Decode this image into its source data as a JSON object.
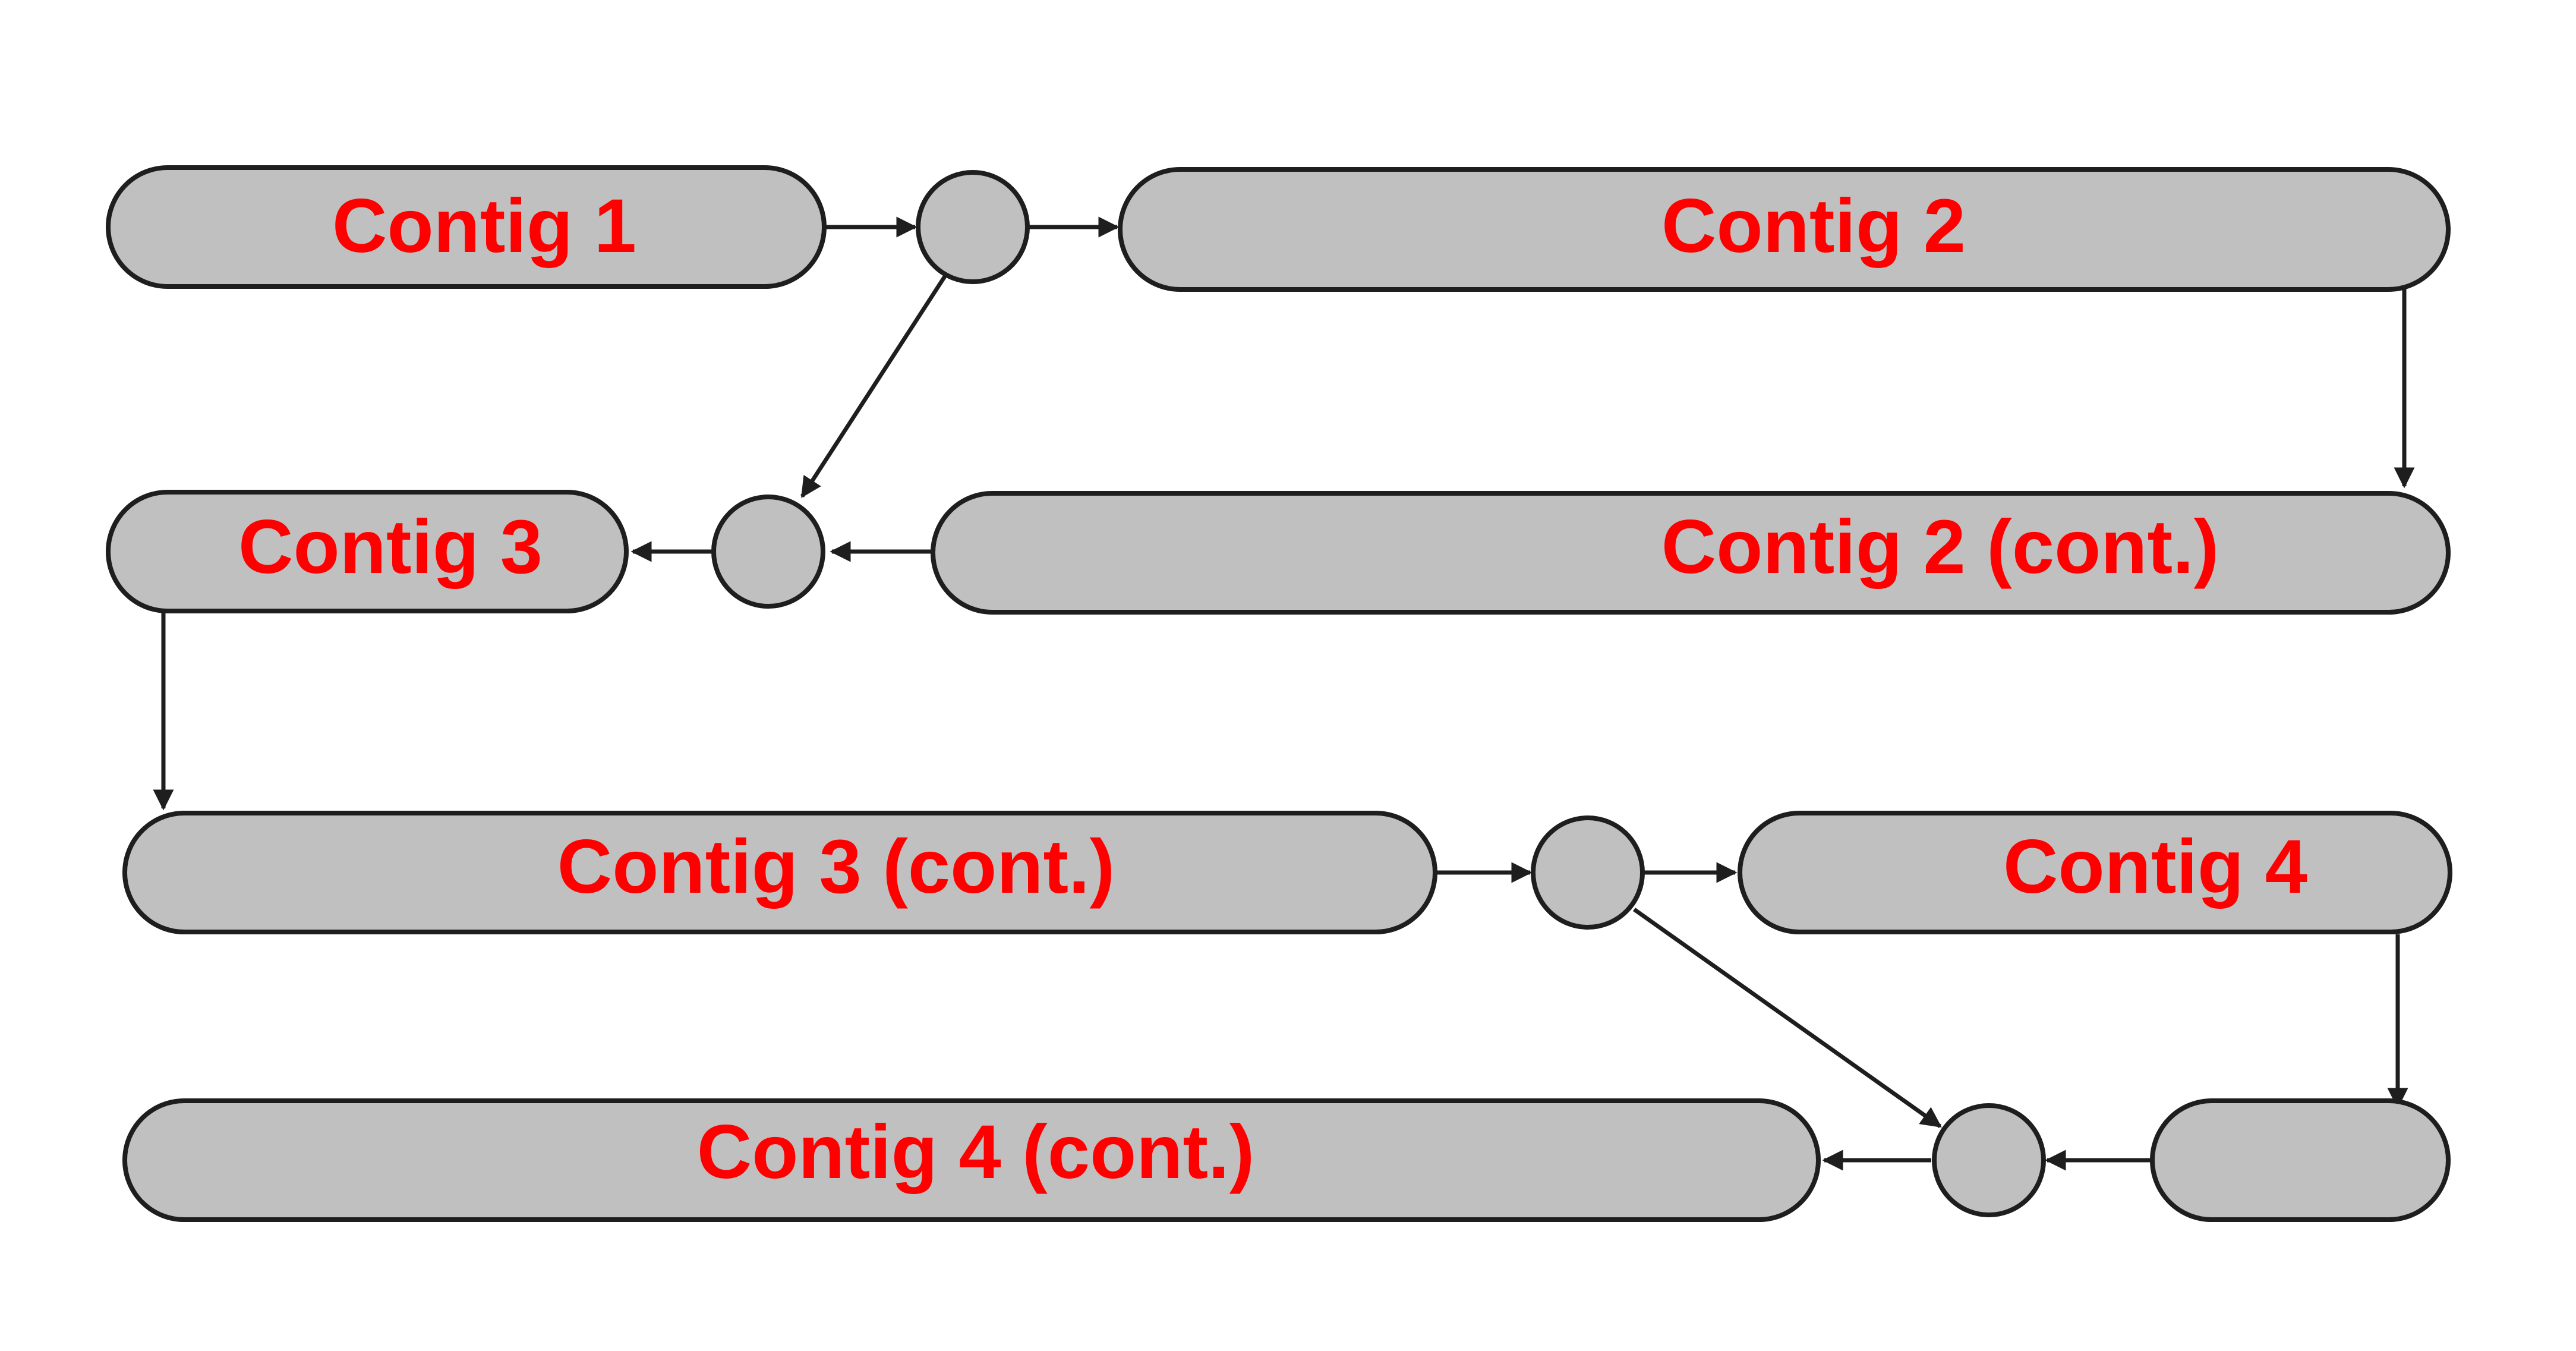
{
  "colors": {
    "fill": "#c0c0c0",
    "stroke": "#1e1e1e",
    "label": "#ff0000",
    "background": "#ffffff"
  },
  "contigs": {
    "contig_1": "Contig 1",
    "contig_2": "Contig 2",
    "contig_2_cont": "Contig 2 (cont.)",
    "contig_3": "Contig 3",
    "contig_3_cont": "Contig 3 (cont.)",
    "contig_4": "Contig 4",
    "contig_4_cont": "Contig 4 (cont.)"
  }
}
